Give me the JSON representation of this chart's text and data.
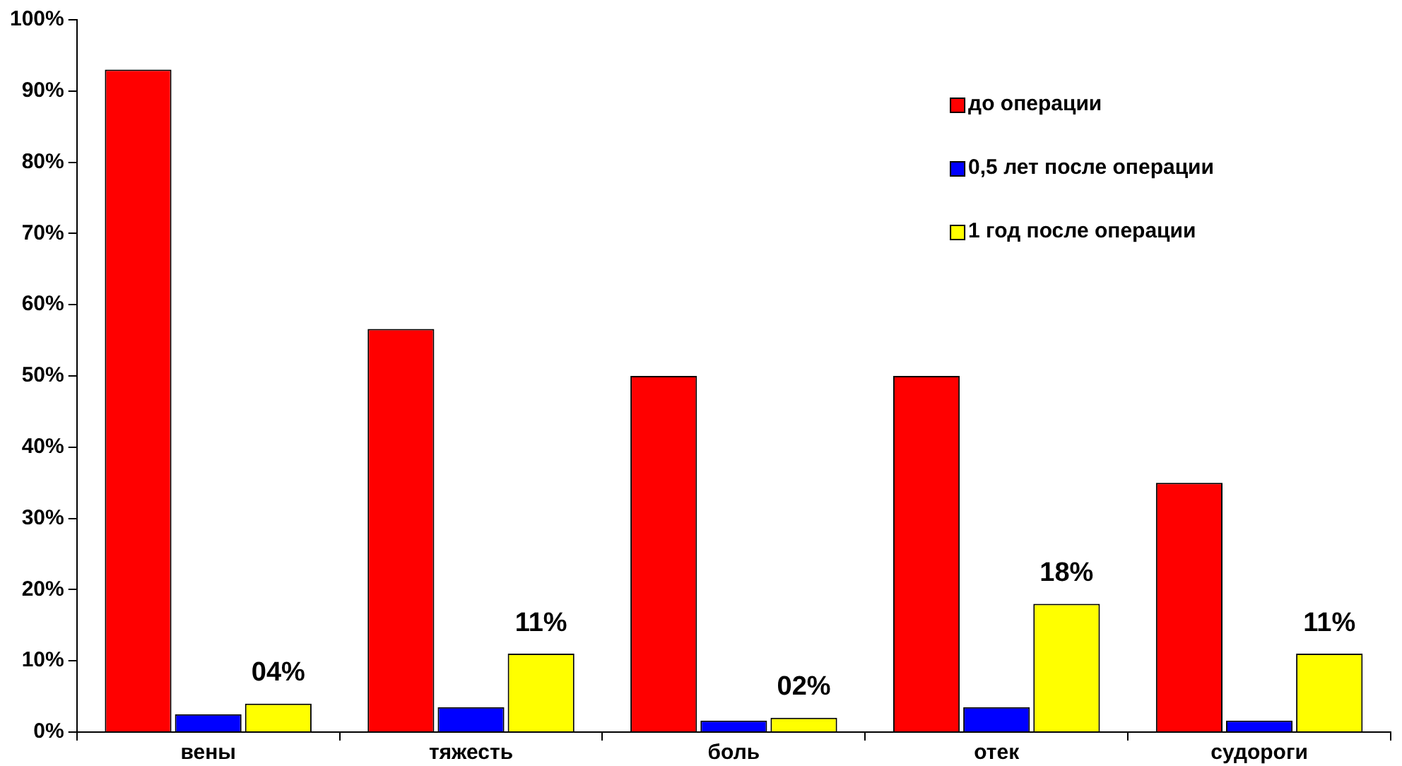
{
  "chart_data": {
    "type": "bar",
    "categories": [
      "вены",
      "тяжесть",
      "боль",
      "отек",
      "судороги"
    ],
    "series": [
      {
        "name": "до операции",
        "color": "#ff0000",
        "values": [
          93,
          56.6,
          50,
          50,
          35
        ]
      },
      {
        "name": "0,5 лет после операции",
        "color": "#0000ff",
        "values": [
          2.5,
          3.5,
          1.6,
          3.5,
          1.6
        ]
      },
      {
        "name": "1 год после операции",
        "color": "#ffff00",
        "values": [
          4,
          11,
          2,
          18,
          11
        ],
        "value_labels": [
          "04%",
          "11%",
          "02%",
          "18%",
          "11%"
        ]
      }
    ],
    "ylim": [
      0,
      100
    ],
    "yticks": [
      {
        "value": 0,
        "label": "0%"
      },
      {
        "value": 10,
        "label": "10%"
      },
      {
        "value": 20,
        "label": "20%"
      },
      {
        "value": 30,
        "label": "30%"
      },
      {
        "value": 40,
        "label": "40%"
      },
      {
        "value": 50,
        "label": "50%"
      },
      {
        "value": 60,
        "label": "60%"
      },
      {
        "value": 70,
        "label": "70%"
      },
      {
        "value": 80,
        "label": "80%"
      },
      {
        "value": 90,
        "label": "90%"
      },
      {
        "value": 100,
        "label": "100%"
      }
    ],
    "grid": false,
    "legend": "top right"
  }
}
